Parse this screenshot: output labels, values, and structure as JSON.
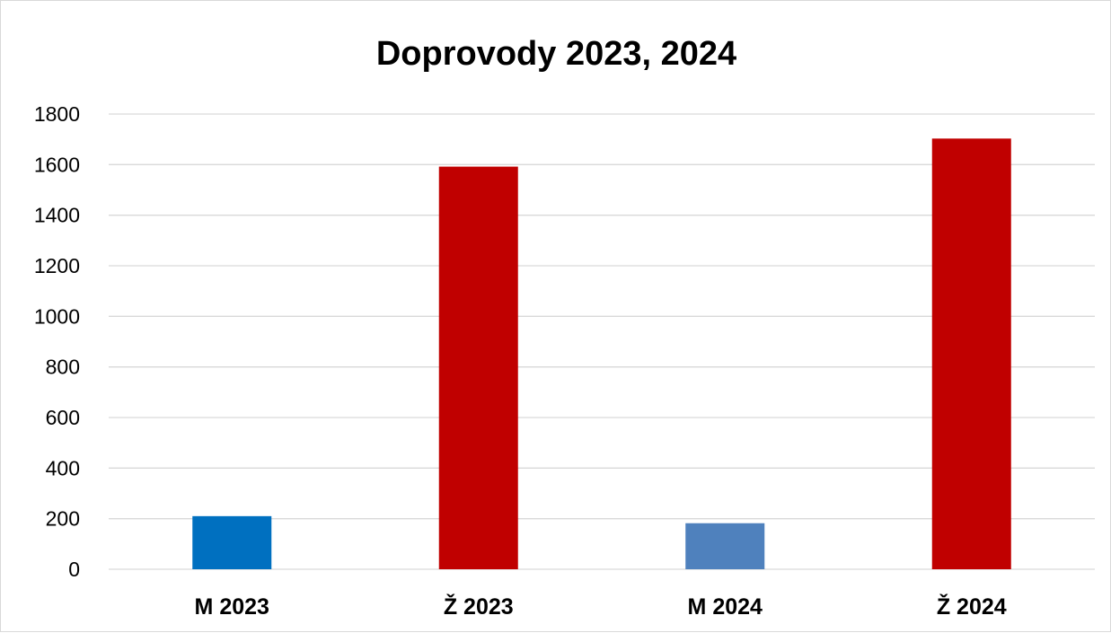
{
  "chart_data": {
    "type": "bar",
    "title": "Doprovody 2023, 2024",
    "categories": [
      "M 2023",
      "Ž 2023",
      "M 2024",
      "Ž 2024"
    ],
    "values": [
      210,
      1592,
      182,
      1703
    ],
    "bar_colors": [
      "#0070C0",
      "#C00000",
      "#4F81BD",
      "#C00000"
    ],
    "ylim": [
      0,
      1800
    ],
    "yticks": [
      0,
      200,
      400,
      600,
      800,
      1000,
      1200,
      1400,
      1600,
      1800
    ],
    "grid": true,
    "legend": "none",
    "xlabel": "",
    "ylabel": ""
  }
}
